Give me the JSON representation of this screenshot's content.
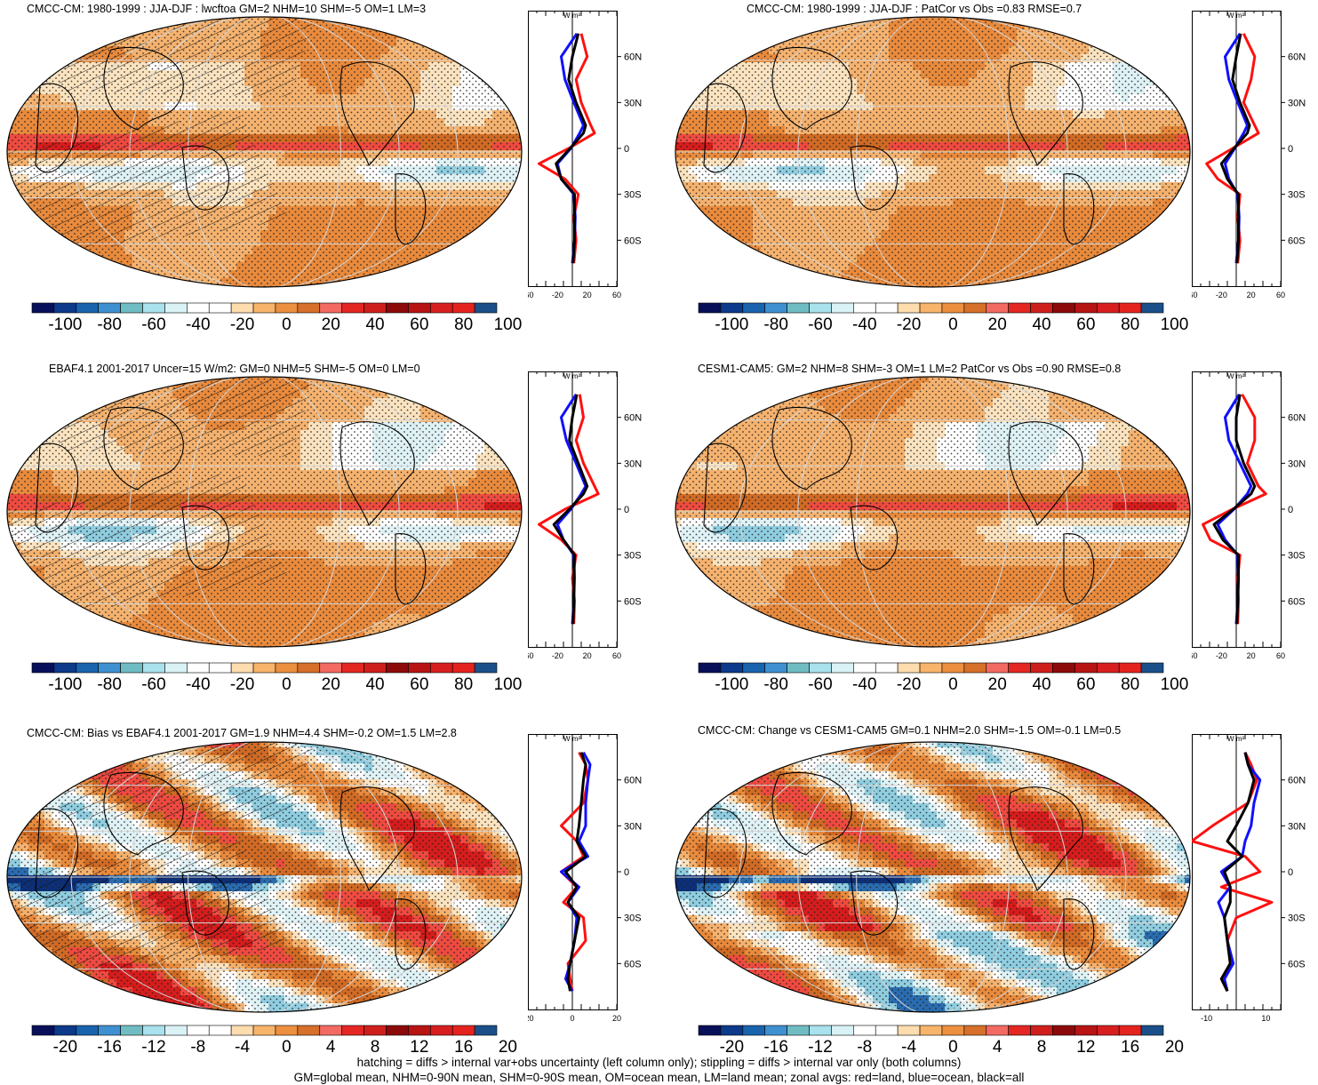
{
  "chart_data": [
    {
      "type": "heatmap",
      "panel": "top-left",
      "title": "CMCC-CM: 1980-1999 : JJA-DJF : lwcftoa GM=2 NHM=10 SHM=-5 OM=1 LM=3",
      "colorbar_ticks": [
        "-100",
        "-80",
        "-60",
        "-40",
        "-20",
        "0",
        "20",
        "40",
        "60",
        "80",
        "100"
      ],
      "colorbar_range": [
        -100,
        100
      ],
      "zonal": {
        "unit_label": "W m²",
        "lat_ticks": [
          "60N",
          "30N",
          "0",
          "30S",
          "60S"
        ],
        "x_ticks": [
          "-60",
          "-20",
          "20",
          "60"
        ],
        "xlim": [
          -60,
          60
        ],
        "lat": [
          75,
          60,
          45,
          30,
          15,
          10,
          0,
          -10,
          -20,
          -30,
          -45,
          -60,
          -75
        ],
        "land": [
          12,
          20,
          5,
          12,
          25,
          30,
          -5,
          -45,
          -10,
          8,
          2,
          5,
          2
        ],
        "ocean": [
          6,
          -15,
          -10,
          2,
          15,
          10,
          -2,
          -20,
          -15,
          2,
          4,
          3,
          0
        ],
        "all": [
          8,
          0,
          -5,
          5,
          18,
          15,
          -3,
          -22,
          -15,
          3,
          3,
          3,
          1
        ]
      }
    },
    {
      "type": "heatmap",
      "panel": "top-right",
      "title": "CMCC-CM: 1980-1999 : JJA-DJF : PatCor vs Obs =0.83 RMSE=0.7",
      "colorbar_ticks": [
        "-100",
        "-80",
        "-60",
        "-40",
        "-20",
        "0",
        "20",
        "40",
        "60",
        "80",
        "100"
      ],
      "colorbar_range": [
        -100,
        100
      ],
      "zonal": {
        "unit_label": "W m²",
        "lat_ticks": [
          "60N",
          "30N",
          "0",
          "30S",
          "60S"
        ],
        "x_ticks": [
          "-60",
          "-20",
          "20",
          "60"
        ],
        "xlim": [
          -60,
          60
        ],
        "lat": [
          75,
          60,
          45,
          30,
          15,
          10,
          0,
          -10,
          -20,
          -30,
          -45,
          -60,
          -75
        ],
        "land": [
          10,
          25,
          20,
          10,
          25,
          30,
          -5,
          -40,
          -25,
          5,
          2,
          5,
          2
        ],
        "ocean": [
          5,
          -15,
          -10,
          2,
          15,
          10,
          -2,
          -15,
          -10,
          2,
          4,
          3,
          0
        ],
        "all": [
          6,
          0,
          -5,
          5,
          18,
          15,
          -3,
          -20,
          -12,
          3,
          3,
          3,
          1
        ]
      }
    },
    {
      "type": "heatmap",
      "panel": "middle-left",
      "title": "EBAF4.1 2001-2017 Uncer=15 W/m2: GM=0 NHM=5 SHM=-5 OM=0 LM=0",
      "colorbar_ticks": [
        "-100",
        "-80",
        "-60",
        "-40",
        "-20",
        "0",
        "20",
        "40",
        "60",
        "80",
        "100"
      ],
      "colorbar_range": [
        -100,
        100
      ],
      "zonal": {
        "unit_label": "W m²",
        "lat_ticks": [
          "60N",
          "30N",
          "0",
          "30S",
          "60S"
        ],
        "x_ticks": [
          "-60",
          "-20",
          "20",
          "60"
        ],
        "xlim": [
          -60,
          60
        ],
        "lat": [
          75,
          60,
          45,
          30,
          15,
          10,
          0,
          -10,
          -20,
          -30,
          -45,
          -60,
          -75
        ],
        "land": [
          10,
          15,
          5,
          15,
          30,
          35,
          -10,
          -45,
          -15,
          5,
          0,
          3,
          2
        ],
        "ocean": [
          5,
          -15,
          -8,
          5,
          18,
          12,
          -2,
          -20,
          -12,
          2,
          3,
          2,
          0
        ],
        "all": [
          6,
          0,
          -4,
          8,
          20,
          15,
          -4,
          -25,
          -12,
          3,
          2,
          2,
          1
        ]
      }
    },
    {
      "type": "heatmap",
      "panel": "middle-right",
      "title": "CESM1-CAM5: GM=2 NHM=8 SHM=-3 OM=1 LM=2 PatCor vs Obs =0.90 RMSE=0.8",
      "colorbar_ticks": [
        "-100",
        "-80",
        "-60",
        "-40",
        "-20",
        "0",
        "20",
        "40",
        "60",
        "80",
        "100"
      ],
      "colorbar_range": [
        -100,
        100
      ],
      "zonal": {
        "unit_label": "W m²",
        "lat_ticks": [
          "60N",
          "30N",
          "0",
          "30S",
          "60S"
        ],
        "x_ticks": [
          "-60",
          "-20",
          "20",
          "60"
        ],
        "xlim": [
          -60,
          60
        ],
        "lat": [
          75,
          60,
          45,
          30,
          15,
          10,
          0,
          -10,
          -20,
          -30,
          -45,
          -60,
          -75
        ],
        "land": [
          8,
          25,
          25,
          15,
          30,
          40,
          -5,
          -45,
          -35,
          5,
          2,
          3,
          2
        ],
        "ocean": [
          4,
          -15,
          -10,
          5,
          20,
          15,
          -3,
          -25,
          -15,
          2,
          3,
          2,
          0
        ],
        "all": [
          5,
          0,
          0,
          10,
          25,
          20,
          -4,
          -30,
          -18,
          3,
          3,
          2,
          1
        ]
      }
    },
    {
      "type": "heatmap",
      "panel": "bottom-left",
      "title": "CMCC-CM: Bias vs EBAF4.1 2001-2017 GM=1.9 NHM=4.4 SHM=-0.2 OM=1.5 LM=2.8",
      "colorbar_ticks": [
        "-20",
        "-16",
        "-12",
        "-8",
        "-4",
        "0",
        "4",
        "8",
        "12",
        "16",
        "20"
      ],
      "colorbar_range": [
        -20,
        20
      ],
      "zonal": {
        "unit_label": "W m²",
        "lat_ticks": [
          "60N",
          "30N",
          "0",
          "30S",
          "60S"
        ],
        "x_ticks": [
          "-20",
          "0",
          "20"
        ],
        "xlim": [
          -20,
          20
        ],
        "lat": [
          78,
          70,
          60,
          45,
          30,
          20,
          10,
          0,
          -10,
          -20,
          -30,
          -45,
          -60,
          -70,
          -78
        ],
        "land": [
          3,
          6,
          7,
          5,
          -5,
          2,
          5,
          -5,
          2,
          -4,
          5,
          6,
          -2,
          -1,
          0
        ],
        "ocean": [
          5,
          8,
          7,
          6,
          6,
          3,
          7,
          -5,
          3,
          -2,
          2,
          1,
          -1,
          -3,
          0
        ],
        "all": [
          4,
          6,
          5,
          4,
          3,
          2,
          6,
          -3,
          2,
          -2,
          3,
          1,
          -1,
          -2,
          -1
        ]
      }
    },
    {
      "type": "heatmap",
      "panel": "bottom-right",
      "title": "CMCC-CM: Change vs CESM1-CAM5 GM=0.1 NHM=2.0 SHM=-1.5 OM=-0.1 LM=0.5",
      "colorbar_ticks": [
        "-20",
        "-16",
        "-12",
        "-8",
        "-4",
        "0",
        "4",
        "8",
        "12",
        "16",
        "20"
      ],
      "colorbar_range": [
        -20,
        20
      ],
      "zonal": {
        "unit_label": "W m²",
        "lat_ticks": [
          "60N",
          "30N",
          "0",
          "30S",
          "60S"
        ],
        "x_ticks": [
          "-10",
          "10"
        ],
        "xlim": [
          -15,
          15
        ],
        "lat": [
          78,
          70,
          60,
          45,
          30,
          20,
          10,
          0,
          -10,
          -20,
          -30,
          -45,
          -60,
          -70,
          -78
        ],
        "land": [
          3,
          5,
          7,
          4,
          -8,
          -15,
          3,
          8,
          -5,
          12,
          0,
          -3,
          -2,
          -5,
          -3
        ],
        "ocean": [
          3,
          4,
          8,
          6,
          5,
          3,
          2,
          -5,
          -2,
          -6,
          -4,
          -3,
          -1,
          -4,
          -3
        ],
        "all": [
          3,
          4,
          6,
          4,
          0,
          -3,
          2,
          -4,
          -2,
          -2,
          -4,
          -3,
          -2,
          -5,
          -3
        ]
      }
    }
  ],
  "footer": {
    "line1": "hatching = diffs > internal var+obs uncertainty (left column only); stippling = diffs > internal var only (both columns)",
    "line2": "GM=global mean, NHM=0-90N mean, SHM=0-90S mean, OM=ocean mean, LM=land mean; zonal avgs: red=land, blue=ocean, black=all"
  },
  "palette": [
    "#0a0a5e",
    "#143c8c",
    "#1f6fb4",
    "#4c9ad6",
    "#77c2c0",
    "#b2e4ee",
    "#e1f4f7",
    "#ffffff",
    "#ffffff",
    "#fce0b4",
    "#f6b26c",
    "#ea8a3c",
    "#d2691e",
    "#f46060",
    "#e02020",
    "#c41818",
    "#8b0000",
    "#b01010",
    "#d41f1f",
    "#e81e1e",
    "#1c4f8c"
  ]
}
